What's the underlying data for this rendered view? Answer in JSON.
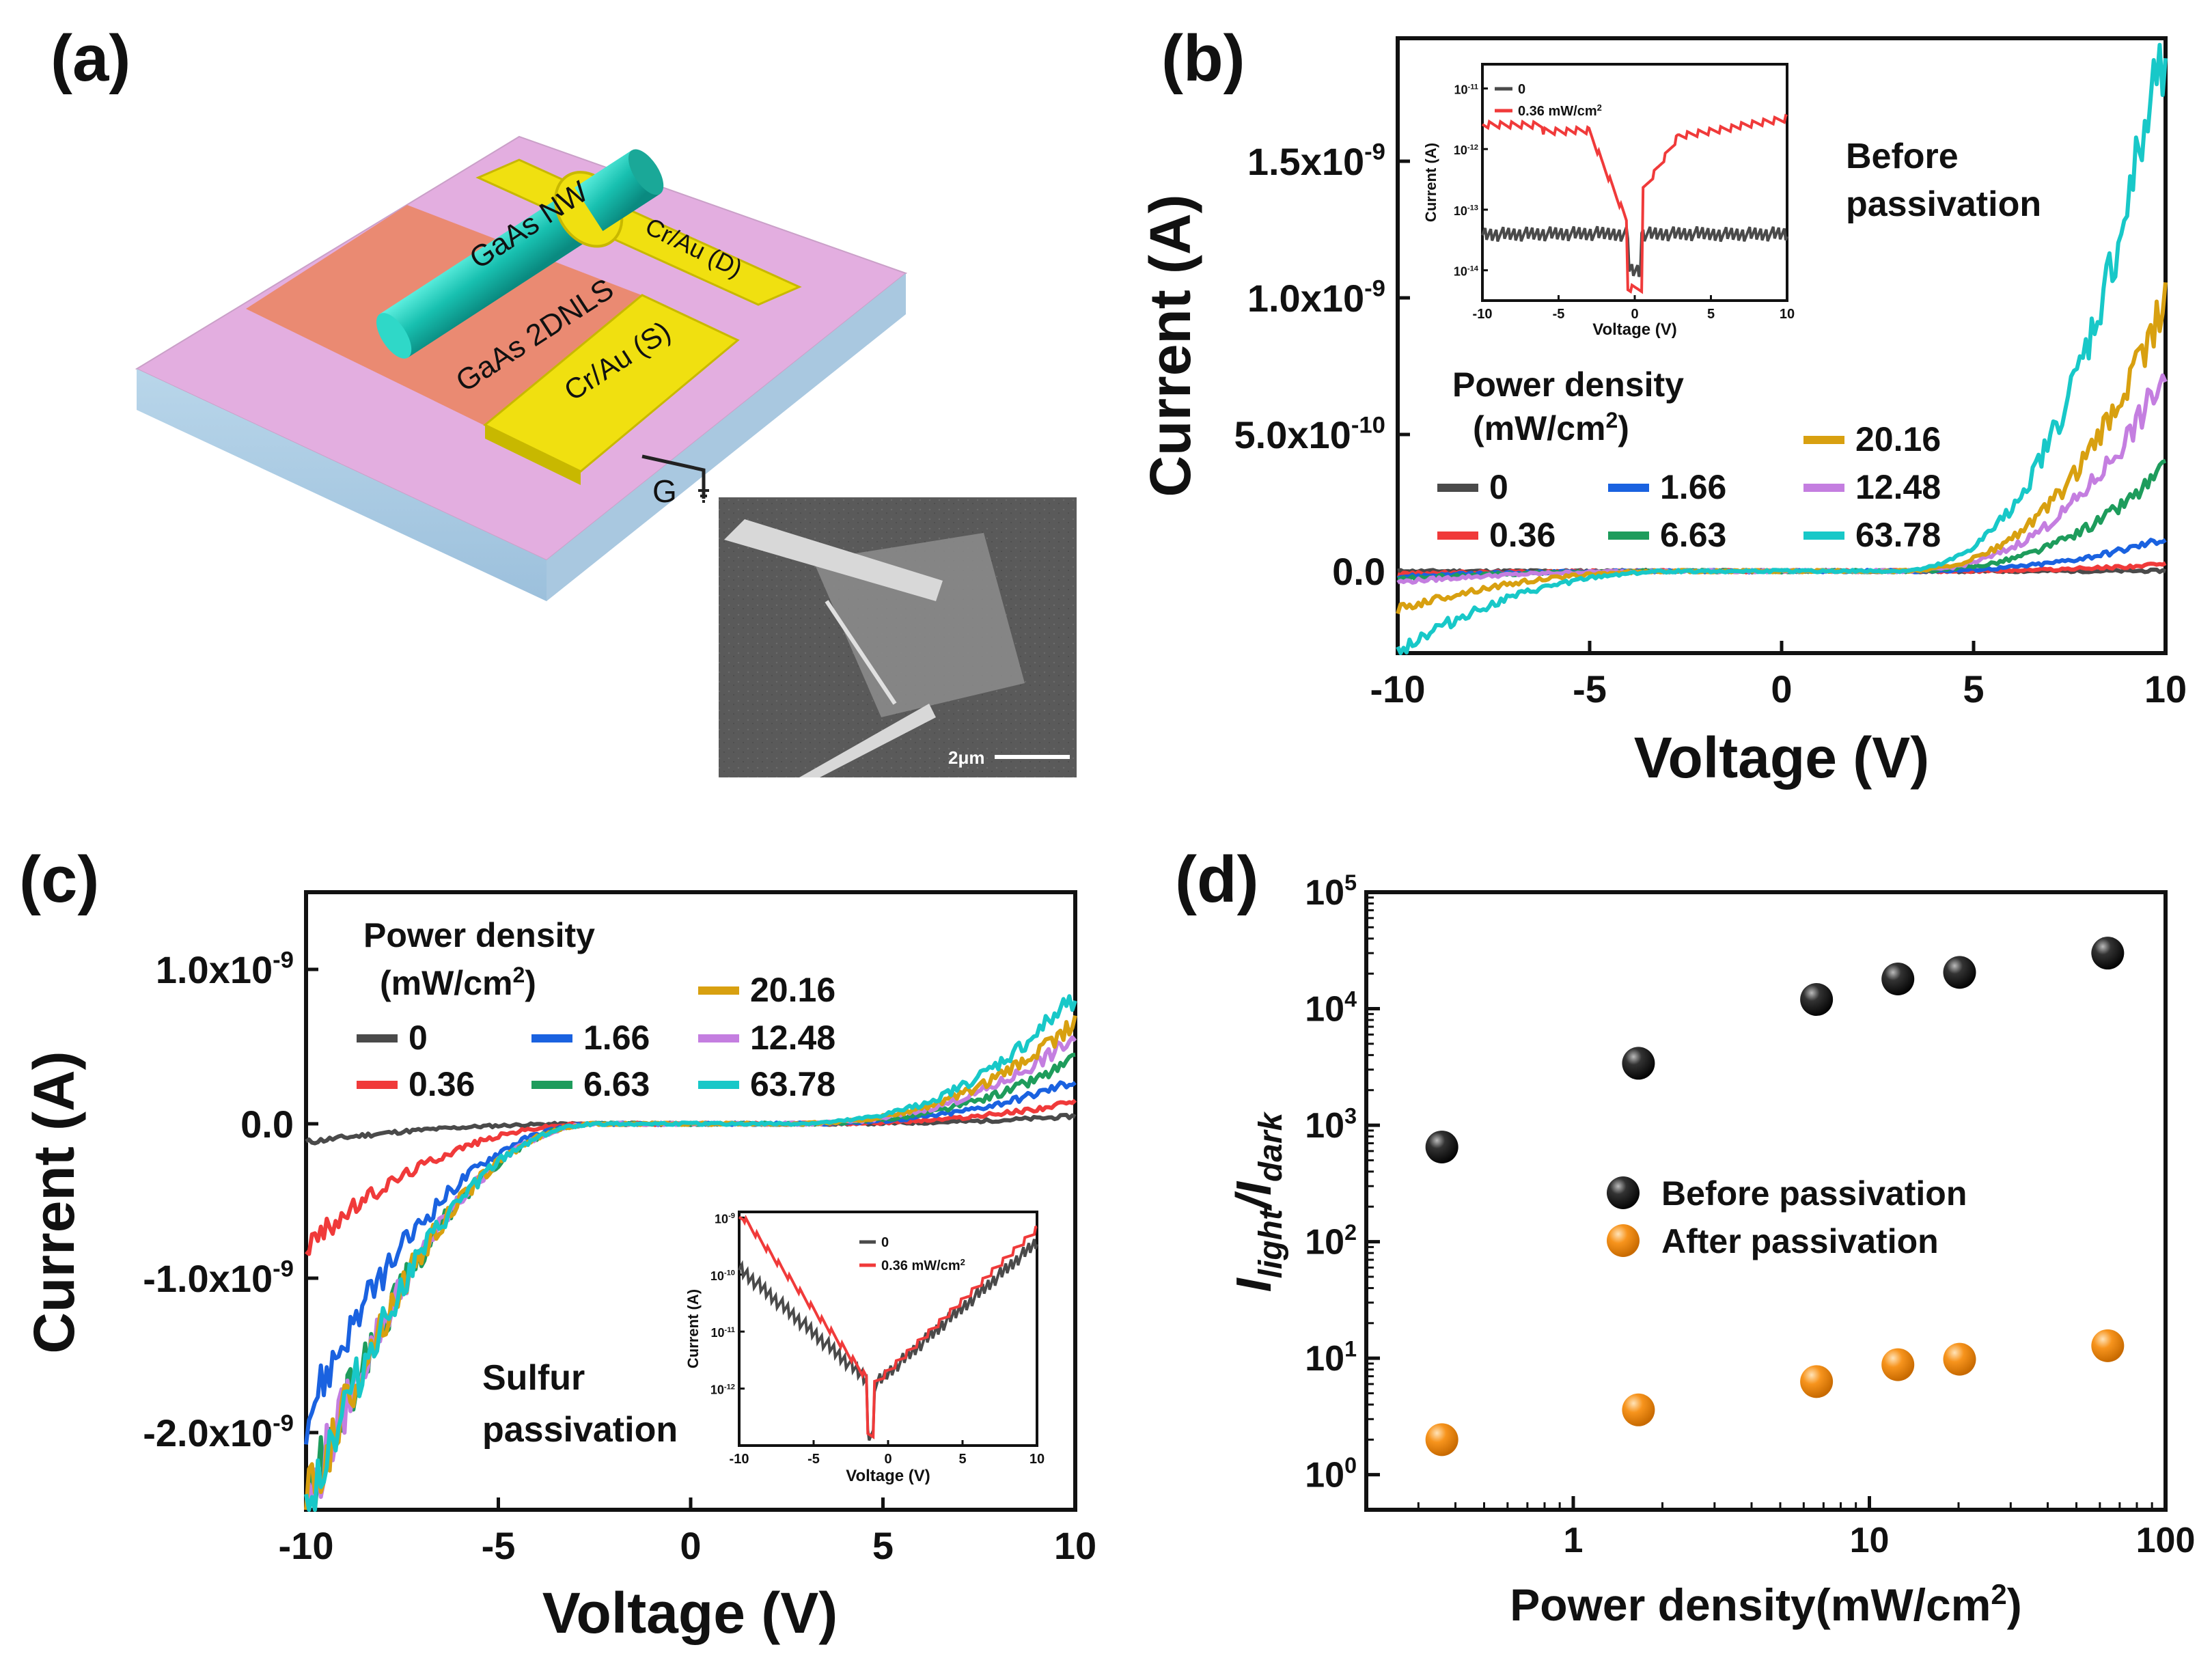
{
  "panel_labels": {
    "a": "(a)",
    "b": "(b)",
    "c": "(c)",
    "d": "(d)"
  },
  "device_schematic": {
    "nanowire": "GaAs NW",
    "layer": "GaAs 2DNLS",
    "drain": "Cr/Au (D)",
    "source": "Cr/Au (S)",
    "gate": "G",
    "sem_scale": "2μm"
  },
  "colors": {
    "0": "#4a4a4a",
    "0.36": "#f03a3a",
    "1.66": "#1a62e0",
    "6.63": "#1e9c5c",
    "12.48": "#c47ee0",
    "20.16": "#d8a010",
    "63.78": "#18c8c8",
    "black_ball": "#111111",
    "orange_ball": "#f7941d"
  },
  "chart_data": [
    {
      "id": "b",
      "type": "line",
      "xlabel": "Voltage (V)",
      "ylabel": "Current (A)",
      "xlim": [
        -10,
        10
      ],
      "ylim": [
        -3e-10,
        1.95e-09
      ],
      "xticks": [
        "-10",
        "-5",
        "0",
        "5",
        "10"
      ],
      "yticks": [
        "0.0",
        "5.0x10",
        "1.0x10",
        "1.5x10"
      ],
      "ytick_exp": [
        "",
        "-10",
        "-9",
        "-9"
      ],
      "annotation_line1": "Before",
      "annotation_line2": "passivation",
      "legend_title1": "Power density",
      "legend_title2": "(mW/cm",
      "legend_title2_sup": "2",
      "legend_title2_end": ")",
      "legend": [
        "0",
        "1.66",
        "12.48",
        "0.36",
        "6.63",
        "20.16",
        "63.78"
      ],
      "series": [
        {
          "name": "0",
          "ineg": 0,
          "ipos": 1e-12
        },
        {
          "name": "0.36",
          "ineg": -1e-11,
          "ipos": 2.5e-11
        },
        {
          "name": "1.66",
          "ineg": -2e-11,
          "ipos": 1.2e-10
        },
        {
          "name": "6.63",
          "ineg": -3e-11,
          "ipos": 3.8e-10
        },
        {
          "name": "12.48",
          "ineg": -4e-11,
          "ipos": 7.2e-10
        },
        {
          "name": "20.16",
          "ineg": -1.4e-10,
          "ipos": 1e-09
        },
        {
          "name": "63.78",
          "ineg": -2.9e-10,
          "ipos": 1.95e-09
        }
      ],
      "inset": {
        "xlabel": "Voltage (V)",
        "ylabel": "Current (A)",
        "xticks": [
          "-10",
          "-5",
          "0",
          "5",
          "10"
        ],
        "yticks": [
          "10",
          "10",
          "10",
          "10"
        ],
        "ytick_exp": [
          "-14",
          "-13",
          "-12",
          "-11"
        ],
        "legend": [
          "0",
          "0.36 mW/cm"
        ],
        "legend_sup": "2"
      }
    },
    {
      "id": "c",
      "type": "line",
      "xlabel": "Voltage (V)",
      "ylabel": "Current (A)",
      "xlim": [
        -10,
        10
      ],
      "ylim": [
        -2.5e-09,
        1.5e-09
      ],
      "xticks": [
        "-10",
        "-5",
        "0",
        "5",
        "10"
      ],
      "yticks": [
        "-2.0x10",
        "-1.0x10",
        "0.0",
        "1.0x10"
      ],
      "ytick_exp": [
        "-9",
        "-9",
        "",
        "-9"
      ],
      "annotation_line1": "Sulfur",
      "annotation_line2": "passivation",
      "legend_title1": "Power density",
      "legend_title2": "(mW/cm",
      "legend_title2_sup": "2",
      "legend_title2_end": ")",
      "legend": [
        "0",
        "1.66",
        "12.48",
        "0.36",
        "6.63",
        "20.16",
        "63.78"
      ],
      "series": [
        {
          "name": "0",
          "ineg": -1.2e-10,
          "ipos": 5e-11
        },
        {
          "name": "0.36",
          "ineg": -8e-10,
          "ipos": 1.4e-10
        },
        {
          "name": "1.66",
          "ineg": -1.9e-09,
          "ipos": 2.8e-10
        },
        {
          "name": "6.63",
          "ineg": -2.5e-09,
          "ipos": 4.2e-10
        },
        {
          "name": "12.48",
          "ineg": -2.5e-09,
          "ipos": 5.6e-10
        },
        {
          "name": "20.16",
          "ineg": -2.5e-09,
          "ipos": 6.6e-10
        },
        {
          "name": "63.78",
          "ineg": -2.5e-09,
          "ipos": 8.3e-10
        }
      ],
      "inset": {
        "xlabel": "Voltage (V)",
        "ylabel": "Current (A)",
        "xticks": [
          "-10",
          "-5",
          "0",
          "5",
          "10"
        ],
        "yticks": [
          "10",
          "10",
          "10",
          "10"
        ],
        "ytick_exp": [
          "-12",
          "-11",
          "-10",
          "-9"
        ],
        "legend": [
          "0",
          "0.36 mW/cm"
        ],
        "legend_sup": "2"
      }
    },
    {
      "id": "d",
      "type": "scatter",
      "xscale": "log",
      "yscale": "log",
      "xlabel": "Power density(mW/cm",
      "xlabel_sup": "2",
      "xlabel_end": ")",
      "ylabel_main": "I",
      "ylabel_sub1": "light",
      "ylabel_mid": "/I",
      "ylabel_sub2": "dark",
      "xlim": [
        0.2,
        100
      ],
      "ylim": [
        0.5,
        100000
      ],
      "xticks": [
        "1",
        "10",
        "100"
      ],
      "yticks": [
        "10",
        "10",
        "10",
        "10",
        "10",
        "10"
      ],
      "ytick_exp": [
        "0",
        "1",
        "2",
        "3",
        "4",
        "5"
      ],
      "legend": [
        "Before passivation",
        "After passivation"
      ],
      "series": [
        {
          "name": "Before passivation",
          "x": [
            0.36,
            1.66,
            6.63,
            12.48,
            20.16,
            63.78
          ],
          "y": [
            650,
            3400,
            12000,
            18000,
            20500,
            30000
          ]
        },
        {
          "name": "After passivation",
          "x": [
            0.36,
            1.66,
            6.63,
            12.48,
            20.16,
            63.78
          ],
          "y": [
            2.0,
            3.6,
            6.3,
            8.8,
            9.8,
            12.8
          ]
        }
      ]
    }
  ]
}
